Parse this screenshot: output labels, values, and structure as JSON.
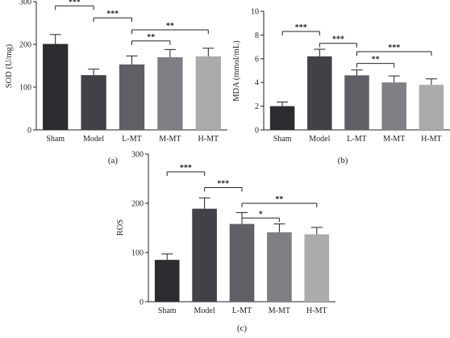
{
  "colors": {
    "bars": [
      "#2b2c30",
      "#414247",
      "#5f6065",
      "#7e7f84",
      "#a9abad"
    ],
    "axis": "#222222"
  },
  "chart_data": [
    {
      "type": "bar",
      "panel_label": "(a)",
      "ylabel": "SOD (U/mg)",
      "ylim": [
        0,
        300
      ],
      "yticks": [
        "0",
        "100",
        "200",
        "300"
      ],
      "categories": [
        "Sham",
        "Model",
        "L-MT",
        "M-MT",
        "H-MT"
      ],
      "values": [
        201,
        128,
        153,
        170,
        172
      ],
      "errors": [
        22,
        14,
        20,
        18,
        19
      ],
      "significance": [
        {
          "from": 0,
          "to": 1,
          "label": "***",
          "y": 290
        },
        {
          "from": 1,
          "to": 2,
          "label": "***",
          "y": 262
        },
        {
          "from": 2,
          "to": 3,
          "label": "**",
          "y": 208
        },
        {
          "from": 2,
          "to": 4,
          "label": "**",
          "y": 234
        }
      ]
    },
    {
      "type": "bar",
      "panel_label": "(b)",
      "ylabel": "MDA (mmol/mL)",
      "ylim": [
        0,
        10
      ],
      "yticks": [
        "0",
        "2",
        "4",
        "6",
        "8",
        "10"
      ],
      "categories": [
        "Sham",
        "Model",
        "L-MT",
        "M-MT",
        "H-MT"
      ],
      "values": [
        2.0,
        6.2,
        4.6,
        4.0,
        3.8
      ],
      "errors": [
        0.35,
        0.6,
        0.45,
        0.55,
        0.5
      ],
      "significance": [
        {
          "from": 0,
          "to": 1,
          "label": "***",
          "y": 8.3
        },
        {
          "from": 1,
          "to": 2,
          "label": "***",
          "y": 7.3
        },
        {
          "from": 2,
          "to": 3,
          "label": "**",
          "y": 5.6
        },
        {
          "from": 2,
          "to": 4,
          "label": "***",
          "y": 6.6
        }
      ]
    },
    {
      "type": "bar",
      "panel_label": "(c)",
      "ylabel": "ROS",
      "ylim": [
        0,
        300
      ],
      "yticks": [
        "0",
        "100",
        "200",
        "300"
      ],
      "categories": [
        "Sham",
        "Model",
        "L-MT",
        "M-MT",
        "H-MT"
      ],
      "values": [
        85,
        189,
        158,
        141,
        137
      ],
      "errors": [
        12,
        22,
        23,
        17,
        14
      ],
      "significance": [
        {
          "from": 0,
          "to": 1,
          "label": "***",
          "y": 264
        },
        {
          "from": 1,
          "to": 2,
          "label": "***",
          "y": 232
        },
        {
          "from": 2,
          "to": 3,
          "label": "*",
          "y": 170
        },
        {
          "from": 2,
          "to": 4,
          "label": "**",
          "y": 200
        }
      ]
    }
  ]
}
